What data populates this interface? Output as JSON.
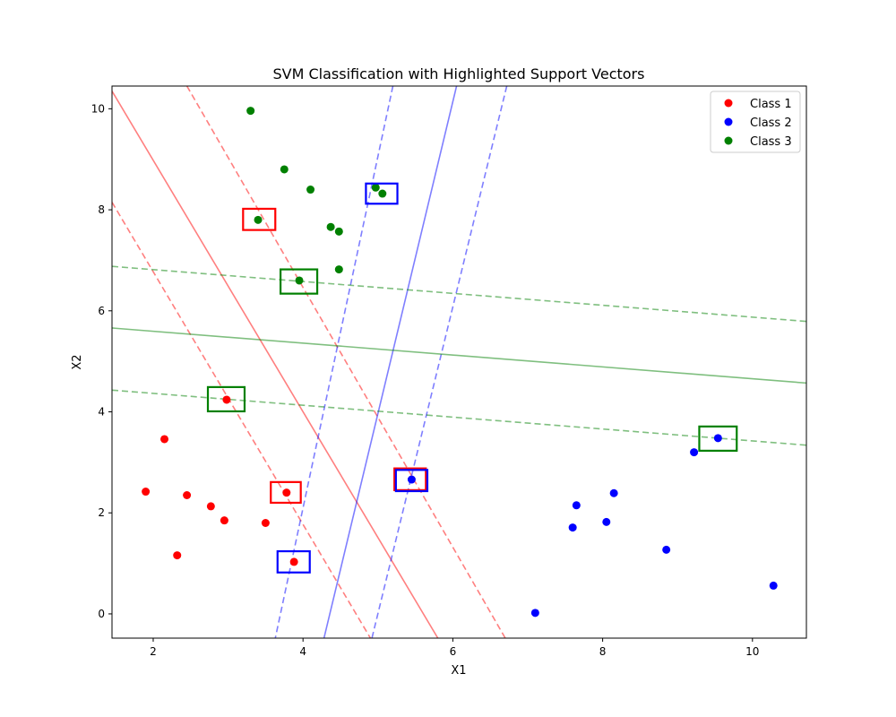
{
  "chart_data": {
    "type": "scatter",
    "title": "SVM Classification with Highlighted Support Vectors",
    "xlabel": "X1",
    "ylabel": "X2",
    "xlim": [
      1.45,
      10.72
    ],
    "ylim": [
      -0.48,
      10.45
    ],
    "xticks": [
      2,
      4,
      6,
      8,
      10
    ],
    "yticks": [
      0,
      2,
      4,
      6,
      8,
      10
    ],
    "grid": false,
    "legend_position": "top-right",
    "series": [
      {
        "name": "Class 1",
        "color": "#ff0000",
        "points": [
          [
            1.9,
            2.42
          ],
          [
            2.15,
            3.46
          ],
          [
            2.32,
            1.16
          ],
          [
            2.45,
            2.35
          ],
          [
            2.77,
            2.13
          ],
          [
            2.95,
            1.85
          ],
          [
            3.5,
            1.8
          ],
          [
            3.78,
            2.4
          ],
          [
            3.88,
            1.03
          ],
          [
            2.98,
            4.24
          ]
        ]
      },
      {
        "name": "Class 2",
        "color": "#0000ff",
        "points": [
          [
            5.45,
            2.66
          ],
          [
            7.1,
            0.02
          ],
          [
            7.6,
            1.71
          ],
          [
            7.65,
            2.15
          ],
          [
            8.05,
            1.82
          ],
          [
            8.15,
            2.39
          ],
          [
            8.85,
            1.27
          ],
          [
            9.22,
            3.2
          ],
          [
            9.54,
            3.48
          ],
          [
            10.28,
            0.56
          ]
        ]
      },
      {
        "name": "Class 3",
        "color": "#008000",
        "points": [
          [
            3.3,
            9.96
          ],
          [
            3.75,
            8.8
          ],
          [
            4.1,
            8.4
          ],
          [
            3.4,
            7.8
          ],
          [
            4.37,
            7.66
          ],
          [
            4.48,
            7.57
          ],
          [
            4.97,
            8.44
          ],
          [
            5.06,
            8.32
          ],
          [
            4.48,
            6.82
          ],
          [
            3.95,
            6.6
          ]
        ]
      }
    ],
    "boundaries": [
      {
        "color": "#ff0000",
        "opacity": 0.5,
        "lines": [
          {
            "style": "solid",
            "from": [
              1.45,
              10.35
            ],
            "to": [
              5.8,
              -0.48
            ]
          },
          {
            "style": "dashed",
            "from": [
              2.45,
              10.45
            ],
            "to": [
              6.7,
              -0.48
            ]
          },
          {
            "style": "dashed",
            "from": [
              1.45,
              8.15
            ],
            "to": [
              4.9,
              -0.48
            ]
          }
        ]
      },
      {
        "color": "#0000ff",
        "opacity": 0.5,
        "lines": [
          {
            "style": "solid",
            "from": [
              6.05,
              10.45
            ],
            "to": [
              4.28,
              -0.48
            ]
          },
          {
            "style": "dashed",
            "from": [
              5.2,
              10.45
            ],
            "to": [
              3.63,
              -0.48
            ]
          },
          {
            "style": "dashed",
            "from": [
              6.72,
              10.45
            ],
            "to": [
              4.92,
              -0.48
            ]
          }
        ]
      },
      {
        "color": "#008000",
        "opacity": 0.5,
        "lines": [
          {
            "style": "solid",
            "from": [
              1.45,
              5.66
            ],
            "to": [
              10.72,
              4.57
            ]
          },
          {
            "style": "dashed",
            "from": [
              1.45,
              6.88
            ],
            "to": [
              10.72,
              5.79
            ]
          },
          {
            "style": "dashed",
            "from": [
              1.45,
              4.43
            ],
            "to": [
              10.72,
              3.34
            ]
          }
        ]
      }
    ],
    "support_vectors": [
      {
        "color": "#ff0000",
        "x0": 3.2,
        "x1": 3.63,
        "y0": 7.6,
        "y1": 8.02
      },
      {
        "color": "#ff0000",
        "x0": 3.57,
        "x1": 3.97,
        "y0": 2.2,
        "y1": 2.61
      },
      {
        "color": "#ff0000",
        "x0": 5.22,
        "x1": 5.64,
        "y0": 2.45,
        "y1": 2.88
      },
      {
        "color": "#0000ff",
        "x0": 4.84,
        "x1": 5.26,
        "y0": 8.12,
        "y1": 8.52
      },
      {
        "color": "#0000ff",
        "x0": 5.24,
        "x1": 5.66,
        "y0": 2.43,
        "y1": 2.85
      },
      {
        "color": "#0000ff",
        "x0": 3.66,
        "x1": 4.09,
        "y0": 0.82,
        "y1": 1.24
      },
      {
        "color": "#008000",
        "x0": 3.7,
        "x1": 4.19,
        "y0": 6.34,
        "y1": 6.82
      },
      {
        "color": "#008000",
        "x0": 2.73,
        "x1": 3.22,
        "y0": 4.01,
        "y1": 4.49
      },
      {
        "color": "#008000",
        "x0": 9.29,
        "x1": 9.79,
        "y0": 3.23,
        "y1": 3.71
      }
    ]
  }
}
